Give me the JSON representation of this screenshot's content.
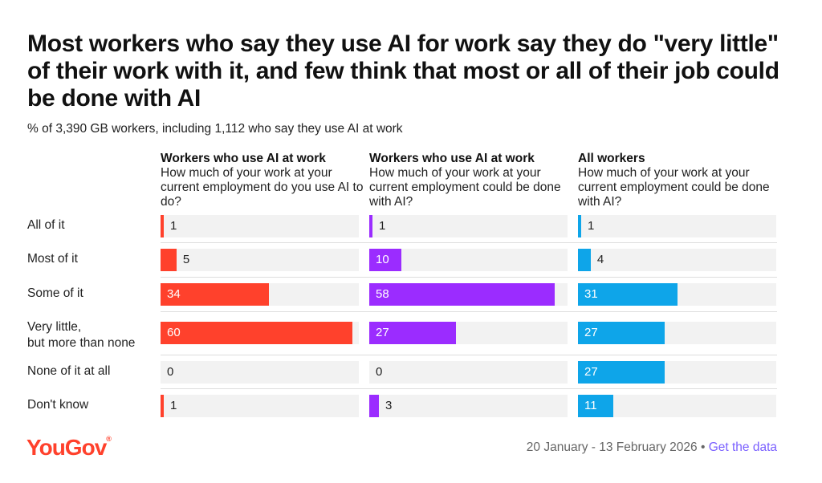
{
  "title": "Most workers who say they use AI for work say they do \"very little\" of their work with it, and few think that most or all of their job could be done with AI",
  "subtitle": "% of 3,390 GB workers, including 1,112 who say they use AI at work",
  "footer": {
    "date_range": "20 January - 13 February 2026",
    "separator": "•",
    "link": "Get the data"
  },
  "logo": {
    "text": "YouGov",
    "mark": "®"
  },
  "chart_data": {
    "type": "bar",
    "orientation": "horizontal",
    "title": "Most workers who say they use AI for work say they do \"very little\" of their work with it, and few think that most or all of their job could be done with AI",
    "subtitle": "% of 3,390 GB workers, including 1,112 who say they use AI at work",
    "categories": [
      "All of it",
      "Most of it",
      "Some of it",
      "Very little,\nbut more than none",
      "None of it at all",
      "Don't know"
    ],
    "xlim": [
      0,
      60
    ],
    "grid": false,
    "series": [
      {
        "name": "Workers who use AI at work",
        "question": "How much of your work at your current employment do you use AI to do?",
        "color": "#ff412c",
        "values": [
          1,
          5,
          34,
          60,
          0,
          1
        ]
      },
      {
        "name": "Workers who use AI at work",
        "question": "How much of your work at your current employment could be done with AI?",
        "color": "#9b2cff",
        "values": [
          1,
          10,
          58,
          27,
          0,
          3
        ]
      },
      {
        "name": "All workers",
        "question": "How much of your work at your current employment could be done with AI?",
        "color": "#0ea5e9",
        "values": [
          1,
          4,
          31,
          27,
          27,
          11
        ]
      }
    ]
  }
}
